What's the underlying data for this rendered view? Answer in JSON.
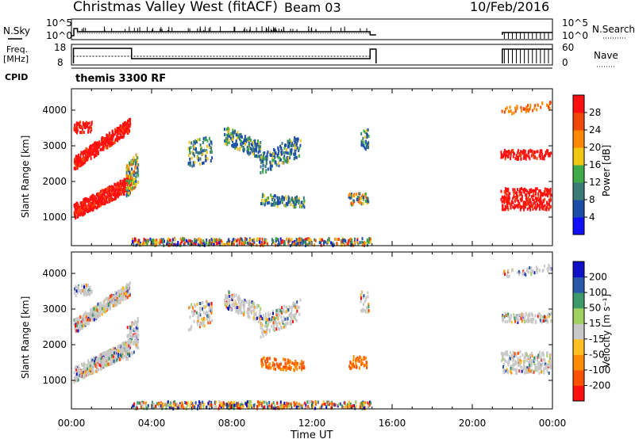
{
  "header": {
    "site": "Christmas Valley West (fitACF)",
    "beam": "Beam 03",
    "date": "10/Feb/2016"
  },
  "status_panels": {
    "nsky_label": "N.Sky",
    "nsearch_label": "N.Search",
    "left_ticks_top": [
      "10^5",
      "10^0"
    ],
    "right_ticks_top": [
      "10^5",
      "10^0"
    ],
    "freq_label_1": "Freq.",
    "freq_label_2": "[MHz]",
    "freq_ticks": [
      "18",
      "8"
    ],
    "nave_label": "Nave",
    "nave_ticks": [
      "60",
      "0"
    ],
    "cpid_label": "CPID",
    "cpid_value": "themis 3300 RF"
  },
  "colors": {
    "power_scale": [
      "#1010ff",
      "#1c4ea8",
      "#3c7a78",
      "#3faa4a",
      "#f0c814",
      "#ff8800",
      "#f04808",
      "#ff1010"
    ],
    "velocity_scale": [
      "#ff1010",
      "#ff5000",
      "#ff8c00",
      "#ffc020",
      "#c8c8c8",
      "#9fd060",
      "#3c9a6a",
      "#2a58a8",
      "#1010c8"
    ],
    "gray": "#c8c8c8"
  },
  "chart_data": [
    {
      "type": "heatmap",
      "name": "power",
      "ylabel": "Slant Range [km]",
      "yticks": [
        "1000",
        "2000",
        "3000",
        "4000"
      ],
      "ylim": [
        200,
        4600
      ],
      "xlim_hours": [
        0,
        24
      ],
      "xticks": [
        "00:00",
        "04:00",
        "08:00",
        "12:00",
        "16:00",
        "20:00",
        "00:00"
      ],
      "colorbar_label": "Power [dB]",
      "colorbar_ticks": [
        "4",
        "8",
        "12",
        "16",
        "20",
        "24",
        "28"
      ],
      "colorbar_range": [
        0,
        32
      ]
    },
    {
      "type": "heatmap",
      "name": "velocity",
      "ylabel": "Slant Range [km]",
      "yticks": [
        "1000",
        "2000",
        "3000",
        "4000"
      ],
      "ylim": [
        200,
        4600
      ],
      "xlim_hours": [
        0,
        24
      ],
      "xticks": [
        "00:00",
        "04:00",
        "08:00",
        "12:00",
        "16:00",
        "20:00",
        "00:00"
      ],
      "xlabel": "Time UT",
      "colorbar_label": "Velocity [m s⁻¹]",
      "colorbar_ticks": [
        "-200",
        "-100",
        "-50",
        "-15",
        "15",
        "50",
        "100",
        "200"
      ]
    }
  ]
}
